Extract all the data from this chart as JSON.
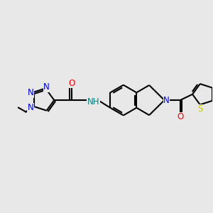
{
  "bg_color": "#e8e8e8",
  "N_color": "#0000ff",
  "O_color": "#ff0000",
  "S_color": "#cccc00",
  "NH_color": "#008080",
  "C_color": "#000000",
  "bond_color": "#000000",
  "bond_lw": 1.5,
  "font_size": 8.5,
  "fig_size": [
    3.0,
    3.0
  ],
  "dpi": 100,
  "xlim": [
    0,
    10
  ],
  "ylim": [
    0,
    10
  ]
}
